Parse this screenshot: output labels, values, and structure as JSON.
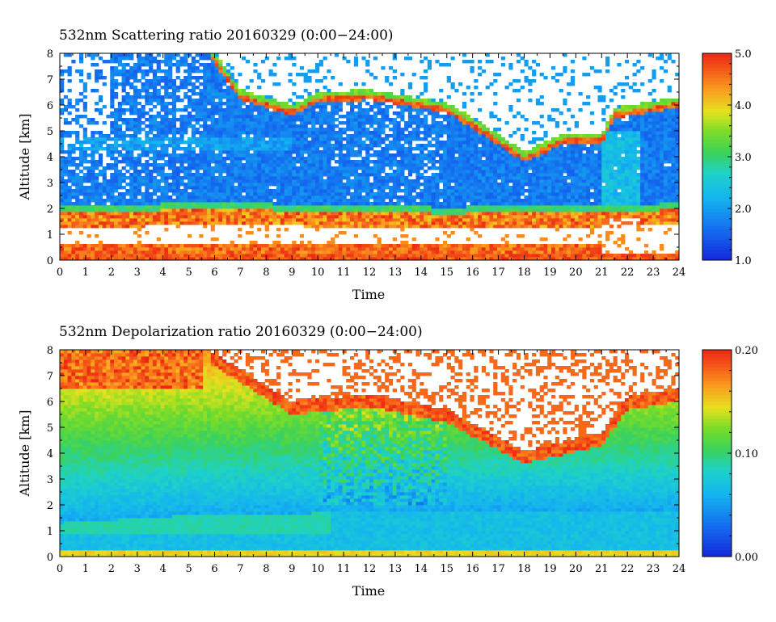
{
  "chart_data": [
    {
      "type": "heatmap",
      "title": "532nm Scattering ratio  20160329 (0:00−24:00)",
      "xlabel": "Time",
      "ylabel": "Altitude [km]",
      "xlim": [
        0,
        24
      ],
      "ylim": [
        0,
        8
      ],
      "x_ticks": [
        "0",
        "1",
        "2",
        "3",
        "4",
        "5",
        "6",
        "7",
        "8",
        "9",
        "10",
        "11",
        "12",
        "13",
        "14",
        "15",
        "16",
        "17",
        "18",
        "19",
        "20",
        "21",
        "22",
        "23",
        "24"
      ],
      "y_ticks": [
        "0",
        "1",
        "2",
        "3",
        "4",
        "5",
        "6",
        "7",
        "8"
      ],
      "colorbar": {
        "min": 1.0,
        "max": 5.0,
        "ticks": [
          "1.0",
          "2.0",
          "3.0",
          "4.0",
          "5.0"
        ]
      },
      "missing_color": "#ffffff",
      "features": {
        "surface_layer_top_km": 0.3,
        "boundary_layer_top_km": [
          [
            0,
            1.9
          ],
          [
            3,
            1.9
          ],
          [
            5.5,
            2.0
          ],
          [
            10,
            1.9
          ],
          [
            15,
            1.8
          ],
          [
            21,
            1.9
          ],
          [
            24,
            1.95
          ]
        ],
        "cloud_base_km": [
          [
            5.8,
            7.9
          ],
          [
            7,
            6.2
          ],
          [
            9,
            5.6
          ],
          [
            10,
            6.1
          ],
          [
            12,
            6.2
          ],
          [
            15,
            5.7
          ],
          [
            16.5,
            4.8
          ],
          [
            18,
            3.8
          ],
          [
            19.5,
            4.5
          ],
          [
            21,
            4.5
          ],
          [
            21.5,
            5.5
          ],
          [
            24,
            5.9
          ]
        ]
      }
    },
    {
      "type": "heatmap",
      "title": "532nm Depolarization ratio  20160329 (0:00−24:00)",
      "xlabel": "Time",
      "ylabel": "Altitude [km]",
      "xlim": [
        0,
        24
      ],
      "ylim": [
        0,
        8
      ],
      "x_ticks": [
        "0",
        "1",
        "2",
        "3",
        "4",
        "5",
        "6",
        "7",
        "8",
        "9",
        "10",
        "11",
        "12",
        "13",
        "14",
        "15",
        "16",
        "17",
        "18",
        "19",
        "20",
        "21",
        "22",
        "23",
        "24"
      ],
      "y_ticks": [
        "0",
        "1",
        "2",
        "3",
        "4",
        "5",
        "6",
        "7",
        "8"
      ],
      "colorbar": {
        "min": 0.0,
        "max": 0.2,
        "ticks": [
          "0.00",
          "0.10",
          "0.20"
        ]
      },
      "missing_color": "#ffffff",
      "features": {
        "surface_layer_top_km": 0.2,
        "boundary_layer_top_km": [
          [
            0,
            1.3
          ],
          [
            5,
            1.6
          ],
          [
            10.5,
            1.7
          ],
          [
            15,
            1.8
          ],
          [
            24,
            1.8
          ]
        ],
        "cloud_base_km": [
          [
            5.8,
            7.5
          ],
          [
            9,
            5.5
          ],
          [
            12,
            5.8
          ],
          [
            15,
            5.2
          ],
          [
            18,
            3.6
          ],
          [
            21,
            4.3
          ],
          [
            22,
            5.7
          ],
          [
            24,
            6.0
          ]
        ]
      }
    }
  ]
}
